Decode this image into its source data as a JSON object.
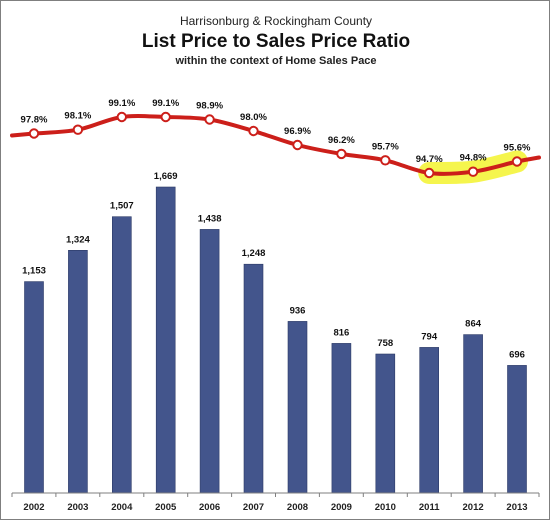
{
  "chart_data": {
    "type": "bar",
    "title_top": "Harrisonburg & Rockingham County",
    "title": "List Price to Sales Price Ratio",
    "subtitle": "within the context of Home Sales Pace",
    "categories": [
      "2002",
      "2003",
      "2004",
      "2005",
      "2006",
      "2007",
      "2008",
      "2009",
      "2010",
      "2011",
      "2012",
      "2013"
    ],
    "series": [
      {
        "type": "bar",
        "values": [
          1153,
          1324,
          1507,
          1669,
          1438,
          1248,
          936,
          816,
          758,
          794,
          864,
          696
        ],
        "labels": [
          "1,153",
          "1,324",
          "1,507",
          "1,669",
          "1,438",
          "1,248",
          "936",
          "816",
          "758",
          "794",
          "864",
          "696"
        ],
        "color": "#43558c"
      },
      {
        "type": "line",
        "values": [
          97.8,
          98.1,
          99.1,
          99.1,
          98.9,
          98.0,
          96.9,
          96.2,
          95.7,
          94.7,
          94.8,
          95.6
        ],
        "labels": [
          "97.8%",
          "98.1%",
          "99.1%",
          "99.1%",
          "98.9%",
          "98.0%",
          "96.9%",
          "96.2%",
          "95.7%",
          "94.7%",
          "94.8%",
          "95.6%"
        ],
        "color": "#cc1f1a",
        "highlight_color": "#f4f43a",
        "highlight_categories": [
          "2011",
          "2012",
          "2013"
        ]
      }
    ],
    "legend": "none",
    "grid": false
  }
}
